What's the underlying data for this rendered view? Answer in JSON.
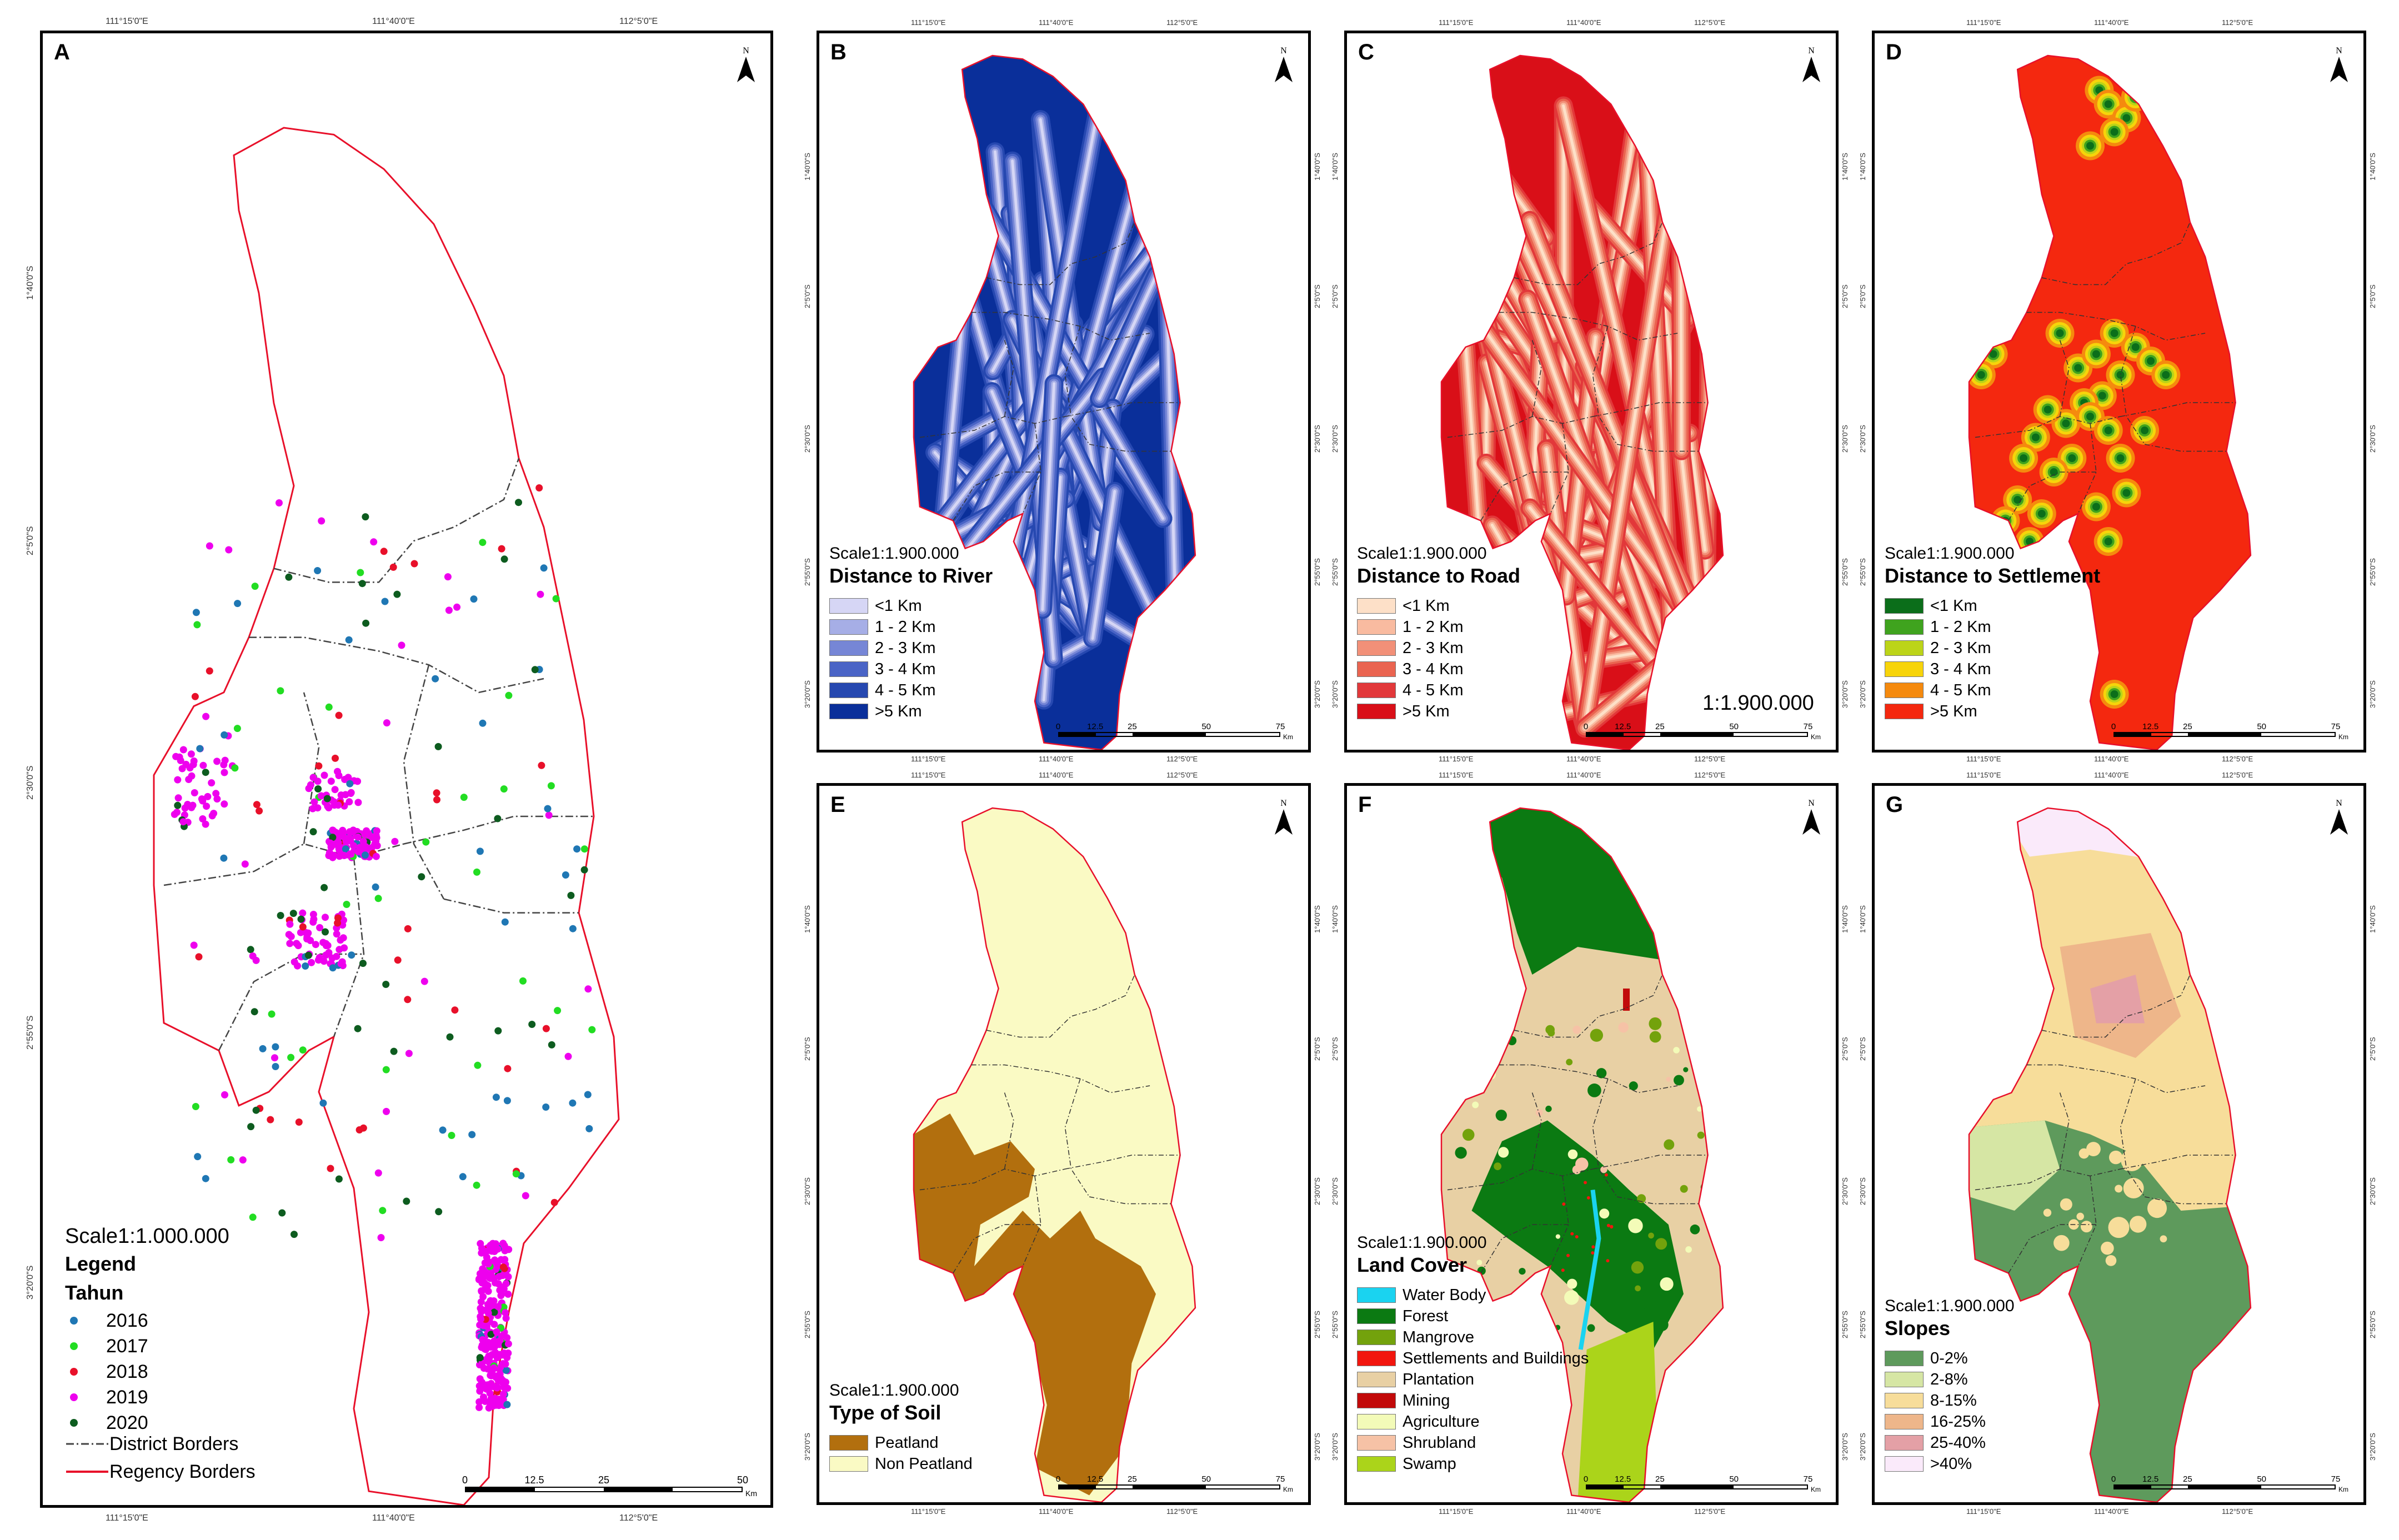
{
  "panels": {
    "A": {
      "label": "A",
      "scale": "Scale1:1.000.000",
      "legend_title": "Legend",
      "legend_group": "Tahun",
      "years": [
        {
          "label": "2016",
          "color": "#1f77b4"
        },
        {
          "label": "2017",
          "color": "#22dd22"
        },
        {
          "label": "2018",
          "color": "#e8102a"
        },
        {
          "label": "2019",
          "color": "#ee00ee"
        },
        {
          "label": "2020",
          "color": "#0d5c1f"
        }
      ],
      "district_border_label": "District Borders",
      "regency_border_label": "Regency Borders",
      "scalebar": [
        "0",
        "12.5",
        "25",
        "50"
      ],
      "scalebar_unit": "Km",
      "top_coords": [
        "111°15'0\"E",
        "111°40'0\"E",
        "112°5'0\"E"
      ],
      "side_coords": [
        "1°40'0\"S",
        "2°5'0\"S",
        "2°30'0\"S",
        "2°55'0\"S",
        "3°20'0\"S"
      ]
    },
    "B": {
      "label": "B",
      "scale": "Scale1:1.900.000",
      "title": "Distance to River",
      "classes": [
        {
          "label": "<1 Km",
          "color": "#d6d6f5"
        },
        {
          "label": "1 - 2 Km",
          "color": "#a6aee6"
        },
        {
          "label": "2 - 3 Km",
          "color": "#7686d6"
        },
        {
          "label": "3 - 4 Km",
          "color": "#4a64c6"
        },
        {
          "label": "4 - 5 Km",
          "color": "#2648b0"
        },
        {
          "label": ">5 Km",
          "color": "#0a2f9a"
        }
      ]
    },
    "C": {
      "label": "C",
      "scale": "Scale1:1.900.000",
      "title": "Distance to Road",
      "ratio": "1:1.900.000",
      "classes": [
        {
          "label": "<1 Km",
          "color": "#fde0c8"
        },
        {
          "label": "1 - 2 Km",
          "color": "#f9bba0"
        },
        {
          "label": "2 - 3 Km",
          "color": "#f29078"
        },
        {
          "label": "3 - 4 Km",
          "color": "#ea6450"
        },
        {
          "label": "4 - 5 Km",
          "color": "#e2383a"
        },
        {
          "label": ">5 Km",
          "color": "#d90f18"
        }
      ]
    },
    "D": {
      "label": "D",
      "scale": "Scale1:1.900.000",
      "title": "Distance to Settlement",
      "classes": [
        {
          "label": "<1 Km",
          "color": "#0b6e1a"
        },
        {
          "label": "1 - 2 Km",
          "color": "#3fa31e"
        },
        {
          "label": "2 - 3 Km",
          "color": "#bcd418"
        },
        {
          "label": "3 - 4 Km",
          "color": "#f7d40a"
        },
        {
          "label": "4 - 5 Km",
          "color": "#f58a0e"
        },
        {
          "label": ">5 Km",
          "color": "#f4280f"
        }
      ]
    },
    "E": {
      "label": "E",
      "scale": "Scale1:1.900.000",
      "title": "Type of Soil",
      "classes": [
        {
          "label": "Peatland",
          "color": "#b26f0e"
        },
        {
          "label": "Non Peatland",
          "color": "#fafac4"
        }
      ]
    },
    "F": {
      "label": "F",
      "scale": "Scale1:1.900.000",
      "title": "Land Cover",
      "classes": [
        {
          "label": "Water Body",
          "color": "#1ad3f0"
        },
        {
          "label": "Forest",
          "color": "#0b7a12"
        },
        {
          "label": "Mangrove",
          "color": "#73a20c"
        },
        {
          "label": "Settlements and Buildings",
          "color": "#f2160e"
        },
        {
          "label": "Plantation",
          "color": "#e8d0a4"
        },
        {
          "label": "Mining",
          "color": "#c20a0a"
        },
        {
          "label": "Agriculture",
          "color": "#f3fbb8"
        },
        {
          "label": "Shrubland",
          "color": "#f6c2a6"
        },
        {
          "label": "Swamp",
          "color": "#abd41a"
        }
      ]
    },
    "G": {
      "label": "G",
      "scale": "Scale1:1.900.000",
      "title": "Slopes",
      "classes": [
        {
          "label": "0-2%",
          "color": "#5e9a5c"
        },
        {
          "label": "2-8%",
          "color": "#d6e6a4"
        },
        {
          "label": "8-15%",
          "color": "#f7dd9a"
        },
        {
          "label": "16-25%",
          "color": "#eeb68a"
        },
        {
          "label": "25-40%",
          "color": "#e4a0a6"
        },
        {
          "label": ">40%",
          "color": "#faeafa"
        }
      ]
    },
    "small_scalebar": [
      "0",
      "12.5",
      "25",
      "50",
      "75"
    ],
    "small_unit": "Km",
    "small_top_coords": [
      "111°15'0\"E",
      "111°40'0\"E",
      "112°5'0\"E"
    ],
    "small_side_coords": [
      "1°40'0\"S",
      "2°5'0\"S",
      "2°30'0\"S",
      "2°55'0\"S",
      "3°20'0\"S"
    ],
    "north_letter": "N"
  },
  "colors": {
    "regency_border": "#e8102a",
    "district_border": "#444444"
  }
}
